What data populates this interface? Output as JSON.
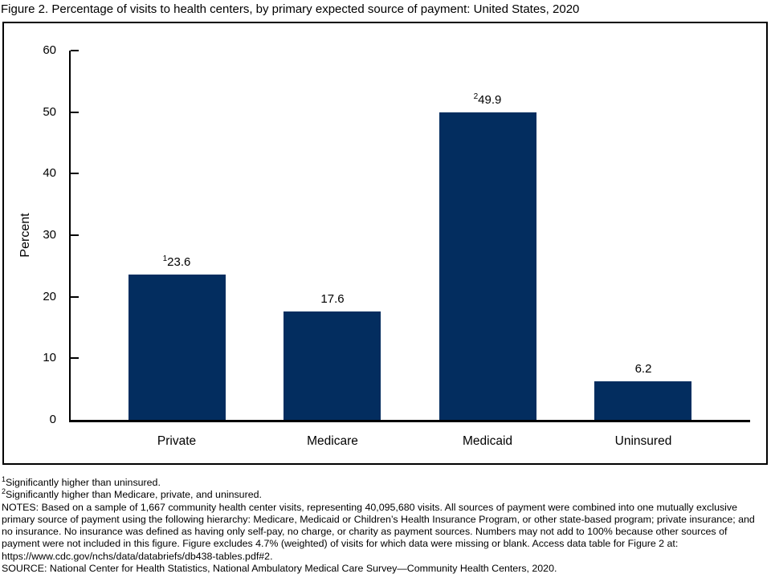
{
  "chart_data": {
    "type": "bar",
    "title": "Figure 2. Percentage of visits to health centers, by primary expected source of payment: United States, 2020",
    "categories": [
      "Private",
      "Medicare",
      "Medicaid",
      "Uninsured"
    ],
    "values": [
      23.6,
      17.6,
      49.9,
      6.2
    ],
    "value_labels": [
      "23.6",
      "17.6",
      "49.9",
      "6.2"
    ],
    "value_label_superscripts": [
      "1",
      "",
      "2",
      ""
    ],
    "xlabel": "",
    "ylabel": "Percent",
    "ylim": [
      0,
      60
    ],
    "yticks": [
      0,
      10,
      20,
      30,
      40,
      50,
      60
    ],
    "grid": false,
    "legend_position": "none",
    "bar_color": "#032d5f",
    "axis_color": "#000000"
  },
  "footnotes": {
    "fn1_sup": "1",
    "fn1_text": "Significantly higher than uninsured.",
    "fn2_sup": "2",
    "fn2_text": "Significantly higher than Medicare, private, and uninsured.",
    "notes": "NOTES: Based on a sample of 1,667 community health center visits, representing 40,095,680 visits. All sources of payment were combined into one mutually exclusive primary source of payment using the following hierarchy: Medicare, Medicaid or Children’s Health Insurance Program, or other state-based program; private insurance; and no insurance. No insurance was defined as having only self-pay, no charge, or charity as payment sources. Numbers may not add to 100% because other sources of payment were not included in this figure. Figure excludes 4.7% (weighted) of visits for which data were missing or blank. Access data table for Figure 2 at: https://www.cdc.gov/nchs/data/databriefs/db438-tables.pdf#2.",
    "source": "SOURCE: National Center for Health Statistics, National Ambulatory Medical Care Survey—Community Health Centers, 2020."
  }
}
